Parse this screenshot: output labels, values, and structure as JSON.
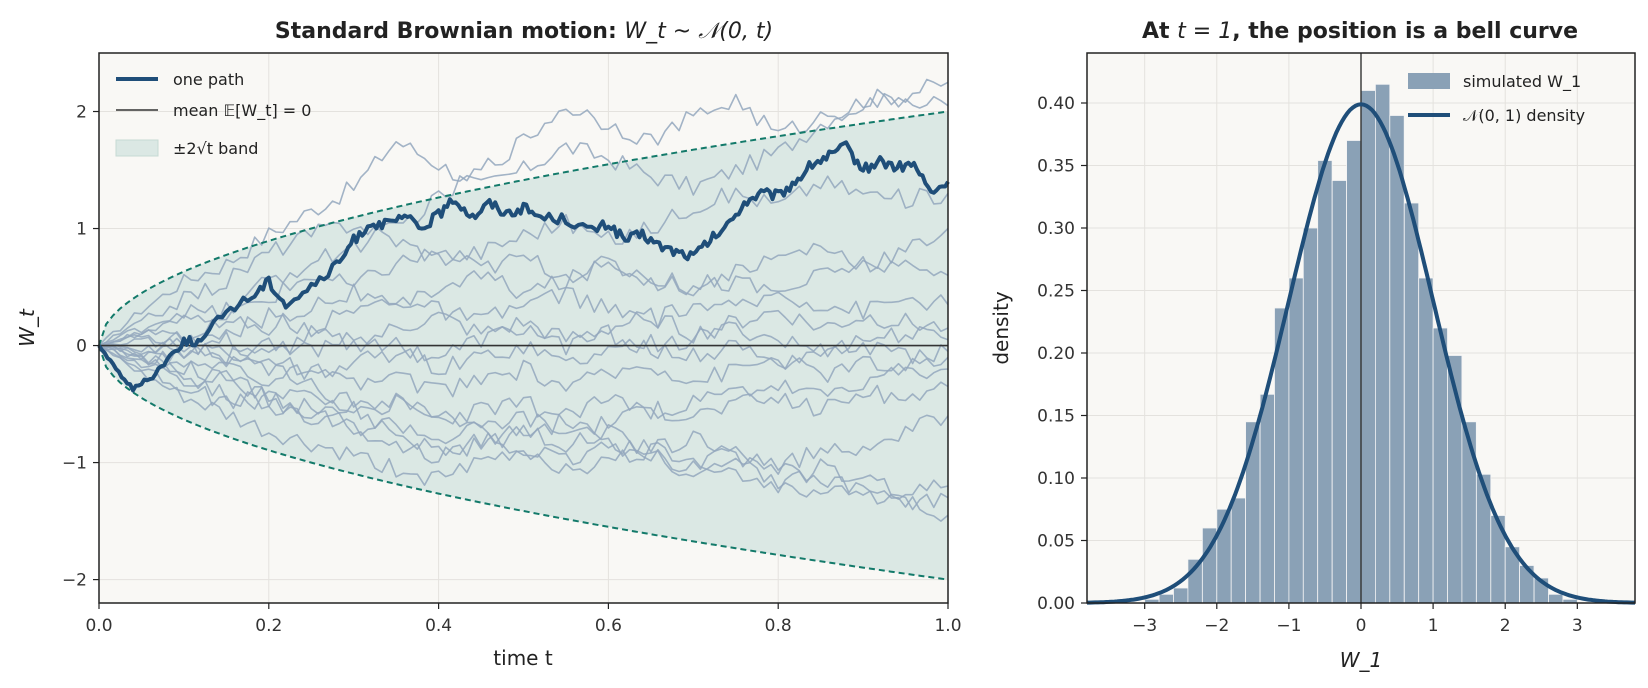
{
  "colors": {
    "background": "#f9f8f5",
    "grid": "#e4e2de",
    "frame": "#222222",
    "path_highlight": "#1f4e79",
    "path_faint": "#93a7bd",
    "band_fill": "#dbe8e4",
    "band_edge": "#137a6a",
    "mean_line": "#333333",
    "hist_bar": "#8aa1b6",
    "density_curve": "#1f4e79"
  },
  "chart_data": [
    {
      "type": "line",
      "title_prefix": "Standard Brownian motion: ",
      "title_math": "W_t ~ 𝒩(0, t)",
      "xlabel": "time t",
      "ylabel": "W_t",
      "xlim": [
        0.0,
        1.0
      ],
      "ylim": [
        -2.2,
        2.5
      ],
      "x_ticks": [
        0.0,
        0.2,
        0.4,
        0.6,
        0.8,
        1.0
      ],
      "x_tick_labels": [
        "0.0",
        "0.2",
        "0.4",
        "0.6",
        "0.8",
        "1.0"
      ],
      "y_ticks": [
        -2,
        -1,
        0,
        1,
        2
      ],
      "y_tick_labels": [
        "−2",
        "−1",
        "0",
        "1",
        "2"
      ],
      "grid": true,
      "legend_position": "top-left",
      "legend": [
        {
          "label": "one path",
          "kind": "thick-line"
        },
        {
          "label": "mean 𝔼[W_t] = 0",
          "kind": "thin-line"
        },
        {
          "label": "±2√t band",
          "kind": "patch"
        }
      ],
      "band": {
        "formula": "±2√t",
        "lower_at_t1": -2.0,
        "upper_at_t1": 2.0
      },
      "mean_value": 0,
      "highlight_path": {
        "name": "one path",
        "t": [
          0,
          0.02,
          0.04,
          0.06,
          0.08,
          0.1,
          0.12,
          0.15,
          0.18,
          0.2,
          0.22,
          0.25,
          0.28,
          0.3,
          0.32,
          0.34,
          0.36,
          0.38,
          0.4,
          0.42,
          0.44,
          0.46,
          0.48,
          0.5,
          0.52,
          0.55,
          0.58,
          0.6,
          0.62,
          0.64,
          0.66,
          0.68,
          0.7,
          0.72,
          0.74,
          0.76,
          0.78,
          0.8,
          0.82,
          0.84,
          0.86,
          0.88,
          0.9,
          0.92,
          0.94,
          0.96,
          0.98,
          1.0
        ],
        "W": [
          0,
          -0.2,
          -0.37,
          -0.28,
          -0.12,
          0.04,
          0.03,
          0.3,
          0.42,
          0.55,
          0.35,
          0.5,
          0.68,
          0.9,
          1.05,
          1.03,
          1.1,
          1.0,
          1.12,
          1.25,
          1.1,
          1.22,
          1.13,
          1.18,
          1.1,
          1.08,
          0.98,
          1.04,
          0.9,
          0.95,
          0.85,
          0.8,
          0.76,
          0.9,
          1.02,
          1.22,
          1.3,
          1.28,
          1.4,
          1.55,
          1.62,
          1.7,
          1.5,
          1.58,
          1.52,
          1.55,
          1.3,
          1.4
        ]
      },
      "background_paths": [
        {
          "t": [
            0,
            0.05,
            0.1,
            0.15,
            0.2,
            0.25,
            0.3,
            0.35,
            0.4,
            0.45,
            0.5,
            0.55,
            0.6,
            0.65,
            0.7,
            0.75,
            0.8,
            0.85,
            0.9,
            0.95,
            1.0
          ],
          "W": [
            0,
            0.3,
            0.55,
            0.7,
            0.95,
            1.15,
            1.35,
            1.75,
            1.55,
            1.35,
            1.5,
            1.7,
            1.6,
            1.45,
            1.35,
            1.5,
            1.65,
            1.9,
            2.1,
            2.15,
            2.25
          ]
        },
        {
          "t": [
            0,
            0.05,
            0.1,
            0.15,
            0.2,
            0.25,
            0.3,
            0.35,
            0.4,
            0.45,
            0.5,
            0.55,
            0.6,
            0.65,
            0.7,
            0.75,
            0.8,
            0.85,
            0.9,
            0.95,
            1.0
          ],
          "W": [
            0,
            0.1,
            0.2,
            0.3,
            0.55,
            0.7,
            0.85,
            1.0,
            1.25,
            1.5,
            1.75,
            2.05,
            1.9,
            1.75,
            1.95,
            2.1,
            1.8,
            1.95,
            2.05,
            2.1,
            2.05
          ]
        },
        {
          "t": [
            0,
            0.05,
            0.1,
            0.15,
            0.2,
            0.25,
            0.3,
            0.35,
            0.4,
            0.45,
            0.5,
            0.55,
            0.6,
            0.65,
            0.7,
            0.75,
            0.8,
            0.85,
            0.9,
            0.95,
            1.0
          ],
          "W": [
            0,
            0.2,
            0.4,
            0.55,
            0.8,
            0.95,
            1.05,
            0.9,
            0.75,
            0.8,
            0.95,
            1.05,
            0.9,
            1.0,
            1.2,
            1.3,
            1.2,
            1.4,
            1.3,
            1.25,
            1.3
          ]
        },
        {
          "t": [
            0,
            0.05,
            0.1,
            0.15,
            0.2,
            0.25,
            0.3,
            0.35,
            0.4,
            0.45,
            0.5,
            0.55,
            0.6,
            0.65,
            0.7,
            0.75,
            0.8,
            0.85,
            0.9,
            0.95,
            1.0
          ],
          "W": [
            0,
            0.15,
            0.3,
            0.25,
            0.4,
            0.6,
            0.5,
            0.7,
            0.8,
            0.65,
            0.75,
            0.6,
            0.7,
            0.55,
            0.5,
            0.65,
            0.75,
            0.85,
            0.7,
            0.8,
            1.0
          ]
        },
        {
          "t": [
            0,
            0.05,
            0.1,
            0.15,
            0.2,
            0.25,
            0.3,
            0.35,
            0.4,
            0.45,
            0.5,
            0.55,
            0.6,
            0.65,
            0.7,
            0.75,
            0.8,
            0.85,
            0.9,
            0.95,
            1.0
          ],
          "W": [
            0,
            -0.1,
            0.1,
            0.2,
            0.15,
            0.35,
            0.45,
            0.3,
            0.5,
            0.6,
            0.45,
            0.55,
            0.7,
            0.6,
            0.5,
            0.55,
            0.45,
            0.6,
            0.7,
            0.65,
            0.6
          ]
        },
        {
          "t": [
            0,
            0.05,
            0.1,
            0.15,
            0.2,
            0.25,
            0.3,
            0.35,
            0.4,
            0.45,
            0.5,
            0.55,
            0.6,
            0.65,
            0.7,
            0.75,
            0.8,
            0.85,
            0.9,
            0.95,
            1.0
          ],
          "W": [
            0,
            0.05,
            -0.05,
            0.1,
            0.25,
            0.15,
            0.3,
            0.4,
            0.3,
            0.2,
            0.35,
            0.45,
            0.3,
            0.2,
            0.35,
            0.3,
            0.45,
            0.35,
            0.3,
            0.4,
            0.35
          ]
        },
        {
          "t": [
            0,
            0.05,
            0.1,
            0.15,
            0.2,
            0.25,
            0.3,
            0.35,
            0.4,
            0.45,
            0.5,
            0.55,
            0.6,
            0.65,
            0.7,
            0.75,
            0.8,
            0.85,
            0.9,
            0.95,
            1.0
          ],
          "W": [
            0,
            -0.15,
            -0.05,
            0.05,
            -0.1,
            0.1,
            0.0,
            0.15,
            0.25,
            0.1,
            0.2,
            0.05,
            0.15,
            0.25,
            0.1,
            0.2,
            0.3,
            0.15,
            0.25,
            0.2,
            0.15
          ]
        },
        {
          "t": [
            0,
            0.05,
            0.1,
            0.15,
            0.2,
            0.25,
            0.3,
            0.35,
            0.4,
            0.45,
            0.5,
            0.55,
            0.6,
            0.65,
            0.7,
            0.75,
            0.8,
            0.85,
            0.9,
            0.95,
            1.0
          ],
          "W": [
            0,
            0.1,
            0.0,
            -0.1,
            0.05,
            -0.05,
            0.1,
            0.0,
            -0.1,
            0.05,
            0.15,
            0.0,
            0.1,
            -0.05,
            0.05,
            0.15,
            0.05,
            -0.05,
            0.05,
            0.1,
            0.05
          ]
        },
        {
          "t": [
            0,
            0.05,
            0.1,
            0.15,
            0.2,
            0.25,
            0.3,
            0.35,
            0.4,
            0.45,
            0.5,
            0.55,
            0.6,
            0.65,
            0.7,
            0.75,
            0.8,
            0.85,
            0.9,
            0.95,
            1.0
          ],
          "W": [
            0,
            -0.05,
            0.05,
            -0.15,
            -0.1,
            -0.25,
            -0.15,
            -0.05,
            -0.2,
            -0.1,
            0.0,
            -0.15,
            -0.05,
            0.05,
            -0.1,
            0.0,
            -0.15,
            -0.05,
            0.0,
            -0.1,
            -0.05
          ]
        },
        {
          "t": [
            0,
            0.05,
            0.1,
            0.15,
            0.2,
            0.25,
            0.3,
            0.35,
            0.4,
            0.45,
            0.5,
            0.55,
            0.6,
            0.65,
            0.7,
            0.75,
            0.8,
            0.85,
            0.9,
            0.95,
            1.0
          ],
          "W": [
            0,
            -0.1,
            -0.2,
            -0.15,
            -0.3,
            -0.2,
            -0.35,
            -0.25,
            -0.4,
            -0.3,
            -0.2,
            -0.35,
            -0.25,
            -0.15,
            -0.3,
            -0.2,
            -0.1,
            -0.25,
            -0.15,
            -0.2,
            -0.1
          ]
        },
        {
          "t": [
            0,
            0.05,
            0.1,
            0.15,
            0.2,
            0.25,
            0.3,
            0.35,
            0.4,
            0.45,
            0.5,
            0.55,
            0.6,
            0.65,
            0.7,
            0.75,
            0.8,
            0.85,
            0.9,
            0.95,
            1.0
          ],
          "W": [
            0,
            -0.15,
            -0.3,
            -0.25,
            -0.45,
            -0.4,
            -0.55,
            -0.5,
            -0.65,
            -0.55,
            -0.5,
            -0.6,
            -0.45,
            -0.55,
            -0.5,
            -0.4,
            -0.35,
            -0.45,
            -0.3,
            -0.25,
            -0.2
          ]
        },
        {
          "t": [
            0,
            0.05,
            0.1,
            0.15,
            0.2,
            0.25,
            0.3,
            0.35,
            0.4,
            0.45,
            0.5,
            0.55,
            0.6,
            0.65,
            0.7,
            0.75,
            0.8,
            0.85,
            0.9,
            0.95,
            1.0
          ],
          "W": [
            0,
            -0.2,
            -0.35,
            -0.5,
            -0.45,
            -0.6,
            -0.7,
            -0.65,
            -0.8,
            -0.7,
            -0.6,
            -0.75,
            -0.65,
            -0.55,
            -0.6,
            -0.5,
            -0.45,
            -0.55,
            -0.4,
            -0.45,
            -0.35
          ]
        },
        {
          "t": [
            0,
            0.05,
            0.1,
            0.15,
            0.2,
            0.25,
            0.3,
            0.35,
            0.4,
            0.45,
            0.5,
            0.55,
            0.6,
            0.65,
            0.7,
            0.75,
            0.8,
            0.85,
            0.9,
            0.95,
            1.0
          ],
          "W": [
            0,
            -0.1,
            -0.25,
            -0.4,
            -0.55,
            -0.5,
            -0.7,
            -0.85,
            -0.95,
            -0.8,
            -0.7,
            -0.85,
            -0.75,
            -0.9,
            -0.8,
            -0.95,
            -1.05,
            -0.9,
            -0.85,
            -0.75,
            -0.6
          ]
        },
        {
          "t": [
            0,
            0.05,
            0.1,
            0.15,
            0.2,
            0.25,
            0.3,
            0.35,
            0.4,
            0.45,
            0.5,
            0.55,
            0.6,
            0.65,
            0.7,
            0.75,
            0.8,
            0.85,
            0.9,
            0.95,
            1.0
          ],
          "W": [
            0,
            -0.25,
            -0.45,
            -0.6,
            -0.75,
            -0.85,
            -0.95,
            -1.05,
            -1.15,
            -1.0,
            -0.9,
            -1.05,
            -1.0,
            -0.9,
            -0.95,
            -1.1,
            -1.2,
            -1.05,
            -1.15,
            -1.25,
            -1.2
          ]
        },
        {
          "t": [
            0,
            0.05,
            0.1,
            0.15,
            0.2,
            0.25,
            0.3,
            0.35,
            0.4,
            0.45,
            0.5,
            0.55,
            0.6,
            0.65,
            0.7,
            0.75,
            0.8,
            0.85,
            0.9,
            0.95,
            1.0
          ],
          "W": [
            0,
            -0.05,
            -0.15,
            -0.3,
            -0.45,
            -0.6,
            -0.55,
            -0.75,
            -0.9,
            -0.85,
            -0.75,
            -0.65,
            -0.8,
            -0.95,
            -1.05,
            -0.9,
            -1.0,
            -1.15,
            -1.25,
            -1.35,
            -1.3
          ]
        },
        {
          "t": [
            0,
            0.05,
            0.1,
            0.15,
            0.2,
            0.25,
            0.3,
            0.35,
            0.4,
            0.45,
            0.5,
            0.55,
            0.6,
            0.65,
            0.7,
            0.75,
            0.8,
            0.85,
            0.9,
            0.95,
            1.0
          ],
          "W": [
            0,
            0.1,
            0.05,
            -0.1,
            -0.2,
            -0.35,
            -0.5,
            -0.45,
            -0.6,
            -0.75,
            -0.9,
            -1.0,
            -0.85,
            -0.95,
            -1.1,
            -1.0,
            -1.15,
            -1.3,
            -1.2,
            -1.35,
            -1.45
          ]
        }
      ]
    },
    {
      "type": "bar",
      "title_prefix": "At ",
      "title_math": "t = 1",
      "title_suffix": ", the position is a bell curve",
      "xlabel": "W_1",
      "ylabel": "density",
      "xlim": [
        -3.8,
        3.8
      ],
      "ylim": [
        0.0,
        0.44
      ],
      "x_ticks": [
        -3,
        -2,
        -1,
        0,
        1,
        2,
        3
      ],
      "x_tick_labels": [
        "−3",
        "−2",
        "−1",
        "0",
        "1",
        "2",
        "3"
      ],
      "y_ticks": [
        0.0,
        0.05,
        0.1,
        0.15,
        0.2,
        0.25,
        0.3,
        0.35,
        0.4
      ],
      "y_tick_labels": [
        "0.00",
        "0.05",
        "0.10",
        "0.15",
        "0.20",
        "0.25",
        "0.30",
        "0.35",
        "0.40"
      ],
      "grid": true,
      "legend_position": "top-right",
      "legend": [
        {
          "label": "simulated W_1",
          "kind": "patch"
        },
        {
          "label": "𝒩(0, 1) density",
          "kind": "thick-line"
        }
      ],
      "vline_x": 0,
      "bin_width": 0.2,
      "bin_starts": [
        -3.0,
        -2.8,
        -2.6,
        -2.4,
        -2.2,
        -2.0,
        -1.8,
        -1.6,
        -1.4,
        -1.2,
        -1.0,
        -0.8,
        -0.6,
        -0.4,
        -0.2,
        0.0,
        0.2,
        0.4,
        0.6,
        0.8,
        1.0,
        1.2,
        1.4,
        1.6,
        1.8,
        2.0,
        2.2,
        2.4,
        2.6,
        2.8
      ],
      "densities": [
        0.003,
        0.007,
        0.012,
        0.035,
        0.06,
        0.075,
        0.084,
        0.145,
        0.167,
        0.236,
        0.26,
        0.3,
        0.354,
        0.338,
        0.37,
        0.41,
        0.415,
        0.39,
        0.32,
        0.26,
        0.22,
        0.198,
        0.145,
        0.103,
        0.07,
        0.045,
        0.03,
        0.02,
        0.007,
        0.003
      ],
      "curve": {
        "name": "𝒩(0, 1) density",
        "mean": 0,
        "sd": 1
      }
    }
  ]
}
